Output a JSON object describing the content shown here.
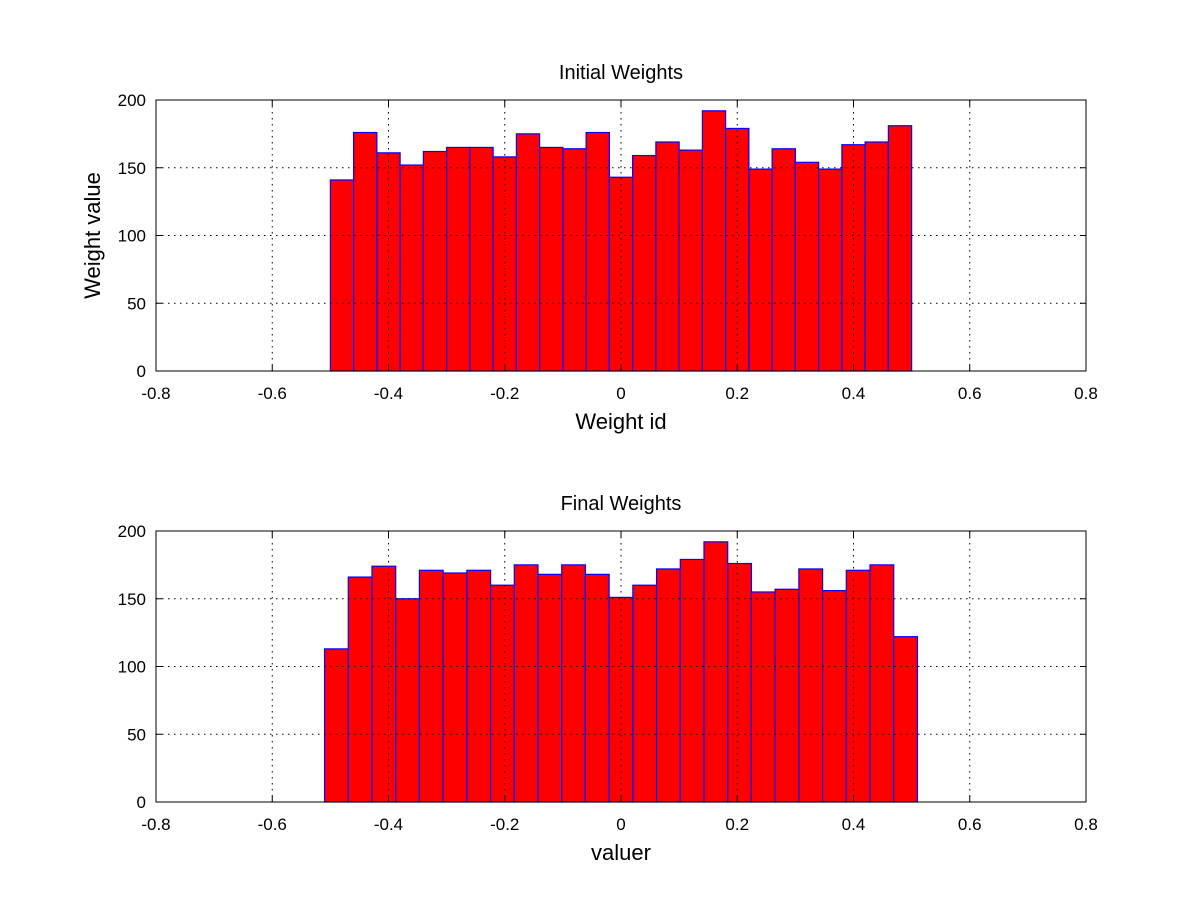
{
  "chart_data": [
    {
      "type": "bar",
      "title": "Initial Weights",
      "xlabel": "Weight id",
      "ylabel": "Weight value",
      "xlim": [
        -0.8,
        0.8
      ],
      "ylim": [
        0,
        200
      ],
      "xticks": [
        "-0.8",
        "-0.6",
        "-0.4",
        "-0.2",
        "0",
        "0.2",
        "0.4",
        "0.6",
        "0.8"
      ],
      "yticks": [
        "0",
        "50",
        "100",
        "150",
        "200"
      ],
      "grid": true,
      "bar_color": "#ff0000",
      "edge_color": "#0000ff",
      "bin_range": [
        -0.5,
        0.5
      ],
      "values": [
        141,
        176,
        161,
        152,
        162,
        165,
        165,
        158,
        175,
        165,
        164,
        176,
        143,
        159,
        169,
        163,
        192,
        179,
        149,
        164,
        154,
        149,
        167,
        169,
        181
      ]
    },
    {
      "type": "bar",
      "title": "Final Weights",
      "xlabel": "valuer",
      "ylabel": "",
      "xlim": [
        -0.8,
        0.8
      ],
      "ylim": [
        0,
        200
      ],
      "xticks": [
        "-0.8",
        "-0.6",
        "-0.4",
        "-0.2",
        "0",
        "0.2",
        "0.4",
        "0.6",
        "0.8"
      ],
      "yticks": [
        "0",
        "50",
        "100",
        "150",
        "200"
      ],
      "grid": true,
      "bar_color": "#ff0000",
      "edge_color": "#0000ff",
      "bin_range": [
        -0.51,
        0.51
      ],
      "values": [
        113,
        166,
        174,
        150,
        171,
        169,
        171,
        160,
        175,
        168,
        175,
        168,
        151,
        160,
        172,
        179,
        192,
        176,
        155,
        157,
        172,
        156,
        171,
        175,
        122
      ]
    }
  ]
}
